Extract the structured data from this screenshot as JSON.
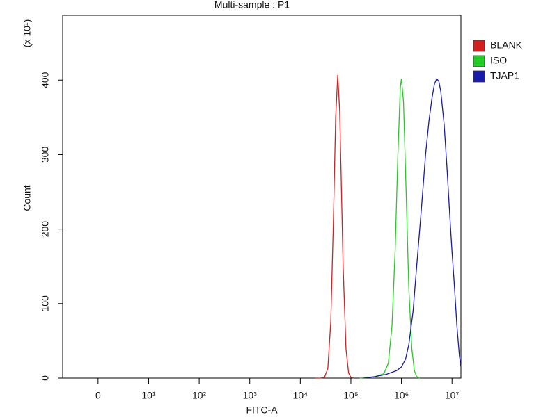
{
  "chart_data": {
    "type": "histogram-overlay",
    "title": "Multi-sample : P1",
    "x_label": "FITC-A",
    "y_label": "Count",
    "y_multiplier": "(x 10¹)",
    "x_scale": "biexponential",
    "xlim": [
      -7,
      15000000
    ],
    "ylim": [
      0,
      487
    ],
    "xticks": [
      0,
      {
        "value": 10,
        "label": "10¹"
      },
      {
        "value": 100,
        "label": "10²"
      },
      {
        "value": 1000,
        "label": "10³"
      },
      {
        "value": 10000,
        "label": "10⁴"
      },
      {
        "value": 100000,
        "label": "10⁵"
      },
      {
        "value": 1000000,
        "label": "10⁶"
      },
      {
        "value": 10000000,
        "label": "10⁷"
      }
    ],
    "yticks": [
      0,
      100,
      200,
      300,
      400
    ],
    "legend": "top-right",
    "series": [
      {
        "name": "BLANK",
        "color": "#d42020",
        "x": [
          20000,
          25000,
          30000,
          35000,
          40000,
          45000,
          50000,
          55000,
          60000,
          65000,
          70000,
          80000,
          90000,
          100000,
          115000
        ],
        "values": [
          0,
          0,
          1,
          13,
          75,
          208,
          350,
          407,
          358,
          254,
          153,
          39,
          7,
          1,
          0
        ]
      },
      {
        "name": "ISO",
        "color": "#22cc22",
        "x": [
          150000,
          300000,
          450000,
          550000,
          650000,
          750000,
          850000,
          950000,
          1000000,
          1100000,
          1250000,
          1400000,
          1600000,
          1800000,
          2000000,
          2300000
        ],
        "values": [
          0,
          2,
          6,
          20,
          70,
          170,
          300,
          390,
          402,
          370,
          240,
          120,
          40,
          10,
          2,
          0
        ]
      },
      {
        "name": "TJAP1",
        "color": "#1a1aaa",
        "x": [
          180000,
          300000,
          500000,
          800000,
          1000000,
          1200000,
          1400000,
          1700000,
          2000000,
          2500000,
          3000000,
          3500000,
          4000000,
          4500000,
          5000000,
          5500000,
          6000000,
          7000000,
          8000000,
          9000000,
          10000000,
          11000000,
          12500000,
          14000000,
          15000000
        ],
        "values": [
          0,
          2,
          5,
          10,
          15,
          25,
          45,
          90,
          150,
          230,
          300,
          345,
          375,
          395,
          402,
          398,
          385,
          340,
          280,
          220,
          170,
          130,
          70,
          30,
          15
        ]
      }
    ]
  }
}
